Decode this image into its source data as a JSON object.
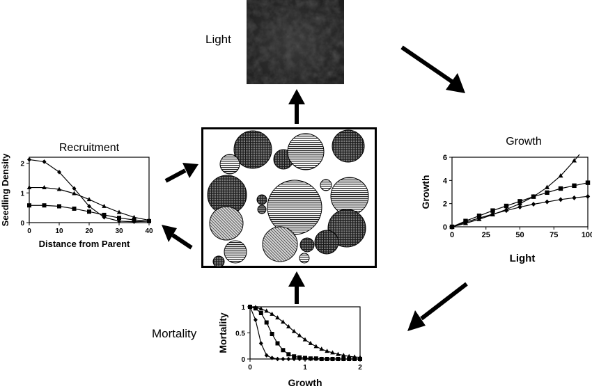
{
  "labels": {
    "light": "Light",
    "mortality": "Mortality"
  },
  "chart_data": [
    {
      "type": "line",
      "title": "Recruitment",
      "xlabel": "Distance from Parent",
      "ylabel": "Seedling Density",
      "xlim": [
        0,
        40
      ],
      "ylim": [
        0,
        2.2
      ],
      "xticks": [
        "0",
        "10",
        "20",
        "30",
        "40"
      ],
      "yticks": [
        "0",
        "1",
        "2"
      ],
      "series": [
        {
          "marker": "diamond",
          "x": [
            0,
            5,
            10,
            15,
            20,
            25,
            30,
            35,
            40
          ],
          "y": [
            2.12,
            2.05,
            1.7,
            1.15,
            0.55,
            0.18,
            0.05,
            0.03,
            0.05
          ]
        },
        {
          "marker": "triangle",
          "x": [
            0,
            5,
            10,
            15,
            20,
            25,
            30,
            35,
            40
          ],
          "y": [
            1.18,
            1.18,
            1.12,
            0.98,
            0.78,
            0.55,
            0.35,
            0.18,
            0.08
          ]
        },
        {
          "marker": "square",
          "x": [
            0,
            5,
            10,
            15,
            20,
            25,
            30,
            35,
            40
          ],
          "y": [
            0.58,
            0.58,
            0.55,
            0.47,
            0.37,
            0.26,
            0.16,
            0.09,
            0.05
          ]
        }
      ]
    },
    {
      "type": "line",
      "title": "Growth",
      "xlabel": "Light",
      "ylabel": "Growth",
      "xlim": [
        0,
        100
      ],
      "ylim": [
        0,
        6
      ],
      "xticks": [
        "0",
        "25",
        "50",
        "75",
        "100"
      ],
      "yticks": [
        "0",
        "2",
        "4",
        "6"
      ],
      "series": [
        {
          "marker": "triangle",
          "x": [
            0,
            10,
            20,
            30,
            40,
            50,
            60,
            70,
            80,
            90,
            95
          ],
          "y": [
            0,
            0.3,
            0.65,
            1.05,
            1.5,
            2.0,
            2.6,
            3.4,
            4.4,
            5.7,
            6.4
          ]
        },
        {
          "marker": "square",
          "x": [
            0,
            10,
            20,
            30,
            40,
            50,
            60,
            70,
            80,
            90,
            100
          ],
          "y": [
            0,
            0.5,
            0.95,
            1.4,
            1.8,
            2.2,
            2.6,
            2.95,
            3.3,
            3.55,
            3.8
          ]
        },
        {
          "marker": "diamond",
          "x": [
            0,
            10,
            20,
            30,
            40,
            50,
            60,
            70,
            80,
            90,
            100
          ],
          "y": [
            0,
            0.4,
            0.75,
            1.1,
            1.4,
            1.7,
            1.95,
            2.15,
            2.35,
            2.5,
            2.62
          ]
        }
      ]
    },
    {
      "type": "line",
      "title": "",
      "xlabel": "Growth",
      "ylabel": "Mortality",
      "xlim": [
        0,
        2
      ],
      "ylim": [
        0,
        1
      ],
      "xticks": [
        "0",
        "1",
        "2"
      ],
      "yticks": [
        "0",
        "0.5",
        "1"
      ],
      "series": [
        {
          "marker": "diamond",
          "x": [
            0,
            0.1,
            0.2,
            0.3,
            0.4,
            0.5,
            0.6,
            0.7,
            0.8,
            0.9,
            1.0,
            1.1,
            1.2,
            1.3,
            1.4,
            1.5,
            1.6,
            1.7,
            1.8,
            1.9,
            2.0
          ],
          "y": [
            1,
            0.75,
            0.3,
            0.07,
            0.02,
            0,
            0,
            0,
            0,
            0,
            0,
            0,
            0,
            0,
            0,
            0,
            0,
            0,
            0,
            0,
            0
          ]
        },
        {
          "marker": "square",
          "x": [
            0,
            0.1,
            0.2,
            0.3,
            0.4,
            0.5,
            0.6,
            0.7,
            0.8,
            0.9,
            1.0,
            1.1,
            1.2,
            1.3,
            1.4,
            1.5,
            1.6,
            1.7,
            1.8,
            1.9,
            2.0
          ],
          "y": [
            1,
            0.97,
            0.88,
            0.7,
            0.48,
            0.3,
            0.17,
            0.09,
            0.05,
            0.03,
            0.02,
            0.01,
            0.01,
            0,
            0,
            0,
            0,
            0,
            0,
            0,
            0
          ]
        },
        {
          "marker": "triangle",
          "x": [
            0,
            0.1,
            0.2,
            0.3,
            0.4,
            0.5,
            0.6,
            0.7,
            0.8,
            0.9,
            1.0,
            1.1,
            1.2,
            1.3,
            1.4,
            1.5,
            1.6,
            1.7,
            1.8,
            1.9,
            2.0
          ],
          "y": [
            1,
            0.99,
            0.96,
            0.92,
            0.86,
            0.79,
            0.71,
            0.62,
            0.53,
            0.45,
            0.37,
            0.3,
            0.24,
            0.19,
            0.15,
            0.12,
            0.09,
            0.07,
            0.05,
            0.04,
            0.03
          ]
        }
      ]
    }
  ]
}
